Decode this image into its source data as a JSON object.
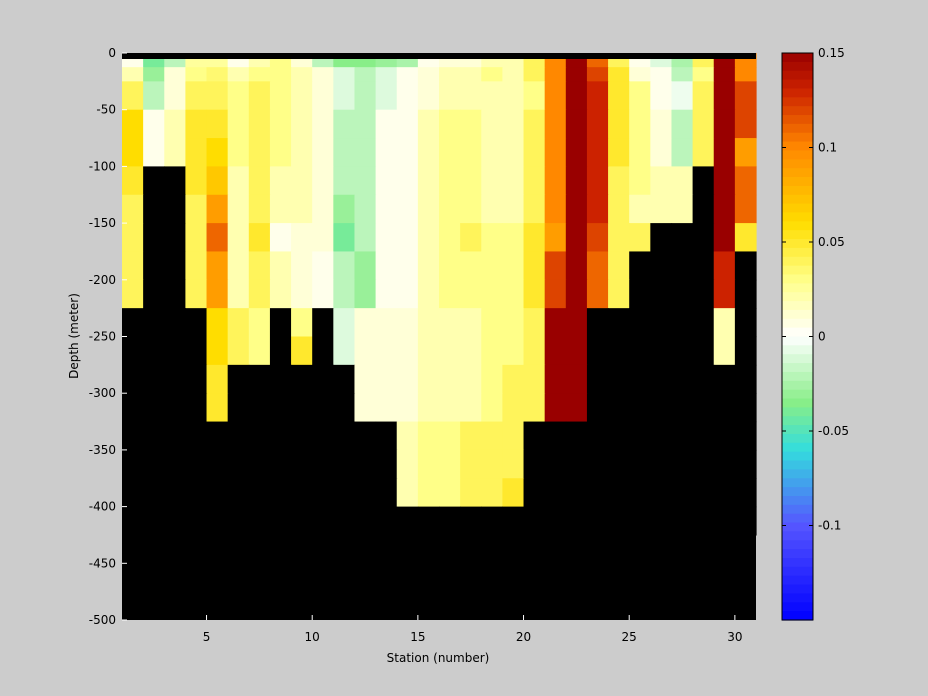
{
  "chart_data": {
    "type": "heatmap",
    "xlabel": "Station (number)",
    "ylabel": "Depth (meter)",
    "xlim": [
      1,
      31
    ],
    "ylim": [
      -500,
      0
    ],
    "xticks": [
      5,
      10,
      15,
      20,
      25,
      30
    ],
    "yticks": [
      0,
      -50,
      -100,
      -150,
      -200,
      -250,
      -300,
      -350,
      -400,
      -450,
      -500
    ],
    "depth_rows_top": [
      0,
      -12.5,
      -25,
      -50,
      -75,
      -100,
      -125,
      -150,
      -175,
      -200,
      -225,
      -250,
      -275,
      -300,
      -325,
      -350,
      -375,
      -400
    ],
    "depth_rows_bottom": [
      -12.5,
      -25,
      -50,
      -75,
      -100,
      -125,
      -150,
      -175,
      -200,
      -225,
      -250,
      -275,
      -300,
      -325,
      -350,
      -375,
      -400,
      -425
    ],
    "stations": [
      1,
      2,
      3,
      4,
      5,
      6,
      7,
      8,
      9,
      10,
      11,
      12,
      13,
      14,
      15,
      16,
      17,
      18,
      19,
      20,
      21,
      22,
      23,
      24,
      25,
      26,
      27,
      28,
      29,
      30
    ],
    "values": [
      [
        0.005,
        -0.04,
        -0.02,
        0.025,
        0.025,
        0.005,
        0.02,
        0.03,
        0.01,
        -0.02,
        -0.035,
        -0.035,
        -0.03,
        -0.025,
        0.005,
        0.01,
        0.01,
        0.02,
        0.02,
        0.04,
        0.1,
        0.15,
        0.11,
        0.04,
        0.005,
        -0.01,
        -0.025,
        0.04,
        0.15,
        0.1
      ],
      [
        0.02,
        -0.03,
        0.01,
        0.03,
        0.035,
        0.02,
        0.03,
        0.03,
        0.02,
        0.01,
        -0.01,
        -0.02,
        -0.01,
        0.005,
        0.01,
        0.02,
        0.02,
        0.03,
        0.02,
        0.04,
        0.1,
        0.15,
        0.12,
        0.05,
        0.01,
        0.005,
        -0.02,
        0.03,
        0.15,
        0.1
      ],
      [
        0.04,
        -0.02,
        0.01,
        0.04,
        0.04,
        0.03,
        0.04,
        0.03,
        0.02,
        0.01,
        -0.01,
        -0.02,
        -0.01,
        0.005,
        0.01,
        0.02,
        0.02,
        0.02,
        0.02,
        0.03,
        0.1,
        0.15,
        0.13,
        0.05,
        0.03,
        0.005,
        -0.005,
        0.04,
        0.15,
        0.12
      ],
      [
        0.06,
        0.005,
        0.02,
        0.05,
        0.05,
        0.03,
        0.04,
        0.03,
        0.02,
        0.01,
        -0.02,
        -0.02,
        0.005,
        0.005,
        0.02,
        0.03,
        0.03,
        0.02,
        0.02,
        0.04,
        0.1,
        0.15,
        0.13,
        0.05,
        0.03,
        0.01,
        -0.02,
        0.04,
        0.15,
        0.12
      ],
      [
        0.06,
        0.005,
        0.02,
        0.05,
        0.06,
        0.03,
        0.04,
        0.03,
        0.02,
        0.01,
        -0.02,
        -0.02,
        0.005,
        0.005,
        0.02,
        0.03,
        0.03,
        0.02,
        0.02,
        0.04,
        0.1,
        0.15,
        0.13,
        0.05,
        0.03,
        0.01,
        -0.02,
        0.04,
        0.15,
        0.09
      ],
      [
        0.05,
        null,
        null,
        0.05,
        0.07,
        0.02,
        0.04,
        0.02,
        0.02,
        0.01,
        -0.02,
        -0.02,
        0.005,
        0.005,
        0.02,
        0.03,
        0.03,
        0.02,
        0.02,
        0.04,
        0.1,
        0.15,
        0.13,
        0.04,
        0.03,
        0.02,
        0.02,
        null,
        0.15,
        0.11
      ],
      [
        0.04,
        null,
        null,
        0.04,
        0.09,
        0.02,
        0.04,
        0.02,
        0.02,
        0.01,
        -0.03,
        -0.02,
        0.005,
        0.005,
        0.02,
        0.03,
        0.03,
        0.02,
        0.02,
        0.04,
        0.1,
        0.15,
        0.13,
        0.04,
        0.02,
        0.02,
        0.02,
        null,
        0.15,
        0.11
      ],
      [
        0.04,
        null,
        null,
        0.04,
        0.11,
        0.02,
        0.05,
        0.005,
        0.01,
        0.01,
        -0.04,
        -0.02,
        0.005,
        0.005,
        0.02,
        0.03,
        0.04,
        0.03,
        0.03,
        0.05,
        0.09,
        0.15,
        0.12,
        0.04,
        0.04,
        null,
        null,
        null,
        0.15,
        0.05
      ],
      [
        0.04,
        null,
        null,
        0.04,
        0.09,
        0.02,
        0.04,
        0.02,
        0.01,
        0.005,
        -0.02,
        -0.03,
        0.005,
        0.005,
        0.02,
        0.03,
        0.03,
        0.03,
        0.03,
        0.05,
        0.12,
        0.15,
        0.11,
        0.04,
        null,
        null,
        null,
        null,
        0.13,
        null
      ],
      [
        0.04,
        null,
        null,
        0.04,
        0.09,
        0.02,
        0.04,
        0.02,
        0.01,
        0.005,
        -0.02,
        -0.03,
        0.005,
        0.005,
        0.02,
        0.03,
        0.03,
        0.03,
        0.03,
        0.05,
        0.12,
        0.15,
        0.11,
        0.04,
        null,
        null,
        null,
        null,
        0.13,
        null
      ],
      [
        null,
        null,
        null,
        null,
        0.06,
        0.04,
        0.03,
        null,
        0.03,
        null,
        -0.01,
        0.01,
        0.01,
        0.01,
        0.02,
        0.02,
        0.02,
        0.03,
        0.03,
        0.04,
        0.15,
        0.15,
        null,
        null,
        null,
        null,
        null,
        null,
        0.02,
        null
      ],
      [
        null,
        null,
        null,
        null,
        0.06,
        0.04,
        0.03,
        null,
        0.05,
        null,
        -0.01,
        0.01,
        0.01,
        0.01,
        0.02,
        0.02,
        0.02,
        0.03,
        0.03,
        0.04,
        0.15,
        0.15,
        null,
        null,
        null,
        null,
        null,
        null,
        0.02,
        null
      ],
      [
        null,
        null,
        null,
        null,
        0.05,
        null,
        null,
        null,
        null,
        null,
        null,
        0.01,
        0.01,
        0.01,
        0.02,
        0.02,
        0.02,
        0.03,
        0.04,
        0.04,
        0.15,
        0.15,
        null,
        null,
        null,
        null,
        null,
        null,
        null,
        null
      ],
      [
        null,
        null,
        null,
        null,
        0.05,
        null,
        null,
        null,
        null,
        null,
        null,
        0.01,
        0.01,
        0.01,
        0.02,
        0.02,
        0.02,
        0.03,
        0.04,
        0.04,
        0.15,
        0.15,
        null,
        null,
        null,
        null,
        null,
        null,
        null,
        null
      ],
      [
        null,
        null,
        null,
        null,
        null,
        null,
        null,
        null,
        null,
        null,
        null,
        null,
        null,
        0.02,
        0.03,
        0.03,
        0.04,
        0.04,
        0.04,
        null,
        null,
        null,
        null,
        null,
        null,
        null,
        null,
        null,
        null,
        null
      ],
      [
        null,
        null,
        null,
        null,
        null,
        null,
        null,
        null,
        null,
        null,
        null,
        null,
        null,
        0.02,
        0.03,
        0.03,
        0.04,
        0.04,
        0.04,
        null,
        null,
        null,
        null,
        null,
        null,
        null,
        null,
        null,
        null,
        null
      ],
      [
        null,
        null,
        null,
        null,
        null,
        null,
        null,
        null,
        null,
        null,
        null,
        null,
        null,
        0.02,
        0.03,
        0.03,
        0.04,
        0.04,
        0.05,
        null,
        null,
        null,
        null,
        null,
        null,
        null,
        null,
        null,
        null,
        null
      ],
      [
        null,
        null,
        null,
        null,
        null,
        null,
        null,
        null,
        null,
        null,
        null,
        null,
        null,
        null,
        null,
        null,
        null,
        null,
        null,
        null,
        null,
        null,
        null,
        null,
        null,
        null,
        null,
        null,
        null,
        null
      ]
    ],
    "missing_color": "#000000",
    "colorbar": {
      "range": [
        -0.15,
        0.15
      ],
      "ticks": [
        -0.1,
        -0.05,
        0,
        0.05,
        0.1,
        0.15
      ],
      "tick_labels": [
        "-0.1",
        "-0.05",
        "0",
        "0.05",
        "0.1",
        "0.15"
      ],
      "stops": [
        {
          "v": -0.15,
          "c": "#0000ff"
        },
        {
          "v": -0.1,
          "c": "#5555ff"
        },
        {
          "v": -0.06,
          "c": "#33dddd"
        },
        {
          "v": -0.035,
          "c": "#88ee88"
        },
        {
          "v": 0.0,
          "c": "#ffffff"
        },
        {
          "v": 0.03,
          "c": "#ffff88"
        },
        {
          "v": 0.06,
          "c": "#ffdd00"
        },
        {
          "v": 0.1,
          "c": "#ff8800"
        },
        {
          "v": 0.13,
          "c": "#cc2200"
        },
        {
          "v": 0.15,
          "c": "#990000"
        }
      ]
    }
  }
}
